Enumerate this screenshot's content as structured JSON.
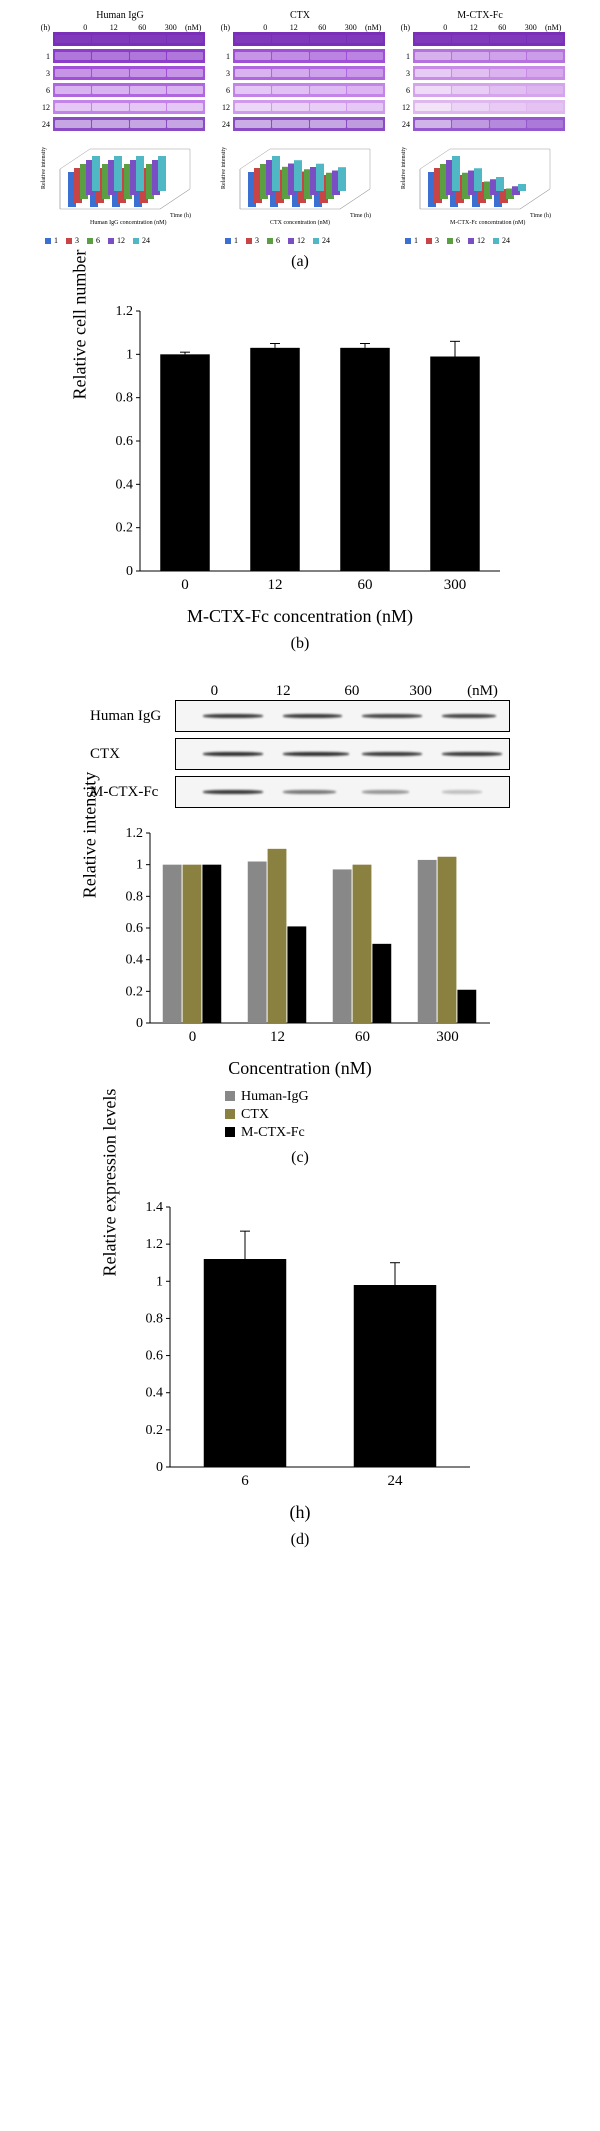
{
  "panelA": {
    "columns": [
      {
        "title": "Human IgG",
        "concs": [
          "0",
          "12",
          "60",
          "300"
        ],
        "unit": "(nM)",
        "timeUnit": "(h)",
        "times": [
          "1",
          "3",
          "6",
          "12",
          "24"
        ],
        "rows": [
          {
            "bg": "#7a2fb8",
            "ops": [
              0.05,
              0.05,
              0.05,
              0.05
            ]
          },
          {
            "bg": "#8d3dc9",
            "ops": [
              0.3,
              0.3,
              0.3,
              0.3
            ]
          },
          {
            "bg": "#a04fd6",
            "ops": [
              0.4,
              0.4,
              0.4,
              0.4
            ]
          },
          {
            "bg": "#b066df",
            "ops": [
              0.5,
              0.5,
              0.5,
              0.5
            ]
          },
          {
            "bg": "#c383e8",
            "ops": [
              0.55,
              0.55,
              0.55,
              0.55
            ]
          },
          {
            "bg": "#8a4bc4",
            "ops": [
              0.5,
              0.5,
              0.5,
              0.5
            ]
          }
        ],
        "bars": {
          "series": [
            "1",
            "3",
            "6",
            "12",
            "24"
          ],
          "colors": [
            "#3b6fd1",
            "#c94545",
            "#5aa042",
            "#7b4fc4",
            "#4fb8c4"
          ],
          "values": [
            [
              1,
              1,
              1,
              1
            ],
            [
              1,
              1,
              1,
              1
            ],
            [
              1,
              1,
              1,
              1
            ],
            [
              1,
              1,
              1,
              1
            ],
            [
              1,
              1,
              1,
              1
            ]
          ]
        },
        "xlabel": "Human IgG concentration (nM)",
        "ylabel": "Relative intensity"
      },
      {
        "title": "CTX",
        "concs": [
          "0",
          "12",
          "60",
          "300"
        ],
        "unit": "(nM)",
        "timeUnit": "(h)",
        "times": [
          "1",
          "3",
          "6",
          "12",
          "24"
        ],
        "rows": [
          {
            "bg": "#7a2fb8",
            "ops": [
              0.05,
              0.05,
              0.05,
              0.05
            ]
          },
          {
            "bg": "#a04fd6",
            "ops": [
              0.4,
              0.35,
              0.3,
              0.3
            ]
          },
          {
            "bg": "#b066df",
            "ops": [
              0.5,
              0.45,
              0.4,
              0.35
            ]
          },
          {
            "bg": "#c383e8",
            "ops": [
              0.55,
              0.5,
              0.45,
              0.4
            ]
          },
          {
            "bg": "#d09bed",
            "ops": [
              0.6,
              0.55,
              0.5,
              0.45
            ]
          },
          {
            "bg": "#8a4bc4",
            "ops": [
              0.55,
              0.5,
              0.5,
              0.45
            ]
          }
        ],
        "bars": {
          "series": [
            "1",
            "3",
            "6",
            "12",
            "24"
          ],
          "colors": [
            "#3b6fd1",
            "#c94545",
            "#5aa042",
            "#7b4fc4",
            "#4fb8c4"
          ],
          "values": [
            [
              1,
              0.95,
              0.9,
              0.85
            ],
            [
              1,
              0.95,
              0.9,
              0.8
            ],
            [
              1,
              0.92,
              0.85,
              0.75
            ],
            [
              1,
              0.9,
              0.8,
              0.7
            ],
            [
              1,
              0.88,
              0.78,
              0.68
            ]
          ]
        },
        "xlabel": "CTX concentration (nM)",
        "ylabel": "Relative intensity"
      },
      {
        "title": "M-CTX-Fc",
        "concs": [
          "0",
          "12",
          "60",
          "300"
        ],
        "unit": "(nM)",
        "timeUnit": "(h)",
        "times": [
          "1",
          "3",
          "6",
          "12",
          "24"
        ],
        "rows": [
          {
            "bg": "#7a2fb8",
            "ops": [
              0.05,
              0.05,
              0.05,
              0.05
            ]
          },
          {
            "bg": "#b571dd",
            "ops": [
              0.45,
              0.4,
              0.35,
              0.3
            ]
          },
          {
            "bg": "#c88ce6",
            "ops": [
              0.55,
              0.45,
              0.35,
              0.25
            ]
          },
          {
            "bg": "#d6a4ec",
            "ops": [
              0.6,
              0.45,
              0.3,
              0.2
            ]
          },
          {
            "bg": "#e0b8f0",
            "ops": [
              0.6,
              0.4,
              0.25,
              0.15
            ]
          },
          {
            "bg": "#9658ce",
            "ops": [
              0.55,
              0.4,
              0.3,
              0.2
            ]
          }
        ],
        "bars": {
          "series": [
            "1",
            "3",
            "6",
            "12",
            "24"
          ],
          "colors": [
            "#3b6fd1",
            "#c94545",
            "#5aa042",
            "#7b4fc4",
            "#4fb8c4"
          ],
          "values": [
            [
              1,
              0.85,
              0.7,
              0.5
            ],
            [
              1,
              0.8,
              0.6,
              0.4
            ],
            [
              1,
              0.75,
              0.5,
              0.3
            ],
            [
              1,
              0.7,
              0.45,
              0.25
            ],
            [
              1,
              0.65,
              0.4,
              0.2
            ]
          ]
        },
        "xlabel": "M-CTX-Fc concentration (nM)",
        "ylabel": "Relative intensity"
      }
    ],
    "caption": "(a)"
  },
  "panelB": {
    "ylabel": "Relative cell number",
    "xlabel": "M-CTX-Fc concentration (nM)",
    "categories": [
      "0",
      "12",
      "60",
      "300"
    ],
    "values": [
      1.0,
      1.03,
      1.03,
      0.99
    ],
    "errors": [
      0.01,
      0.02,
      0.02,
      0.07
    ],
    "ylim": [
      0,
      1.2
    ],
    "yticks": [
      "0",
      "0.2",
      "0.4",
      "0.6",
      "0.8",
      "1",
      "1.2"
    ],
    "bar_color": "#000000",
    "caption": "(b)"
  },
  "panelC": {
    "header": [
      "0",
      "12",
      "60",
      "300"
    ],
    "unit": "(nM)",
    "rows": [
      "Human IgG",
      "CTX",
      "M-CTX-Fc"
    ],
    "blots": [
      [
        {
          "l": 8,
          "w": 18,
          "op": 0.9
        },
        {
          "l": 32,
          "w": 18,
          "op": 0.9
        },
        {
          "l": 56,
          "w": 18,
          "op": 0.85
        },
        {
          "l": 80,
          "w": 16,
          "op": 0.85
        }
      ],
      [
        {
          "l": 8,
          "w": 18,
          "op": 0.95
        },
        {
          "l": 32,
          "w": 20,
          "op": 0.95
        },
        {
          "l": 56,
          "w": 18,
          "op": 0.9
        },
        {
          "l": 80,
          "w": 18,
          "op": 0.9
        }
      ],
      [
        {
          "l": 8,
          "w": 18,
          "op": 0.9
        },
        {
          "l": 32,
          "w": 16,
          "op": 0.6
        },
        {
          "l": 56,
          "w": 14,
          "op": 0.45
        },
        {
          "l": 80,
          "w": 12,
          "op": 0.25
        }
      ]
    ],
    "chart": {
      "ylabel": "Relative intensity",
      "xlabel": "Concentration (nM)",
      "categories": [
        "0",
        "12",
        "60",
        "300"
      ],
      "series": [
        {
          "name": "Human-IgG",
          "color": "#888888",
          "values": [
            1,
            1.02,
            0.97,
            1.03
          ]
        },
        {
          "name": "CTX",
          "color": "#8a8040",
          "values": [
            1,
            1.1,
            1.0,
            1.05
          ]
        },
        {
          "name": "M-CTX-Fc",
          "color": "#000000",
          "values": [
            1,
            0.61,
            0.5,
            0.21
          ]
        }
      ],
      "ylim": [
        0,
        1.2
      ],
      "yticks": [
        "0",
        "0.2",
        "0.4",
        "0.6",
        "0.8",
        "1",
        "1.2"
      ]
    },
    "caption": "(c)"
  },
  "panelD": {
    "ylabel": "Relative expression levels",
    "xlabel": "(h)",
    "categories": [
      "6",
      "24"
    ],
    "values": [
      1.12,
      0.98
    ],
    "errors": [
      0.15,
      0.12
    ],
    "ylim": [
      0,
      1.4
    ],
    "yticks": [
      "0",
      "0.2",
      "0.4",
      "0.6",
      "0.8",
      "1",
      "1.2",
      "1.4"
    ],
    "bar_color": "#000000",
    "caption": "(d)"
  }
}
